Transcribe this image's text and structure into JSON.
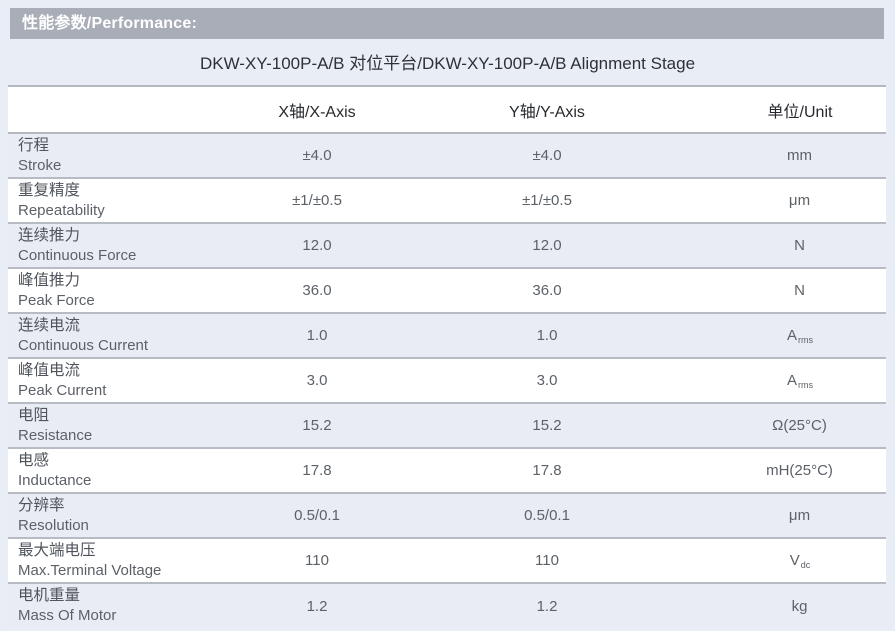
{
  "section": {
    "title": "性能参数/Performance:"
  },
  "title": "DKW-XY-100P-A/B 对位平台/DKW-XY-100P-A/B Alignment Stage",
  "table": {
    "columns": [
      "",
      "X轴/X-Axis",
      "Y轴/Y-Axis",
      "单位/Unit"
    ],
    "rows": [
      {
        "name_cn": "行程",
        "name_en": "Stroke",
        "x": "±4.0",
        "y": "±4.0",
        "unit": "mm"
      },
      {
        "name_cn": "重复精度",
        "name_en": "Repeatability",
        "x": "±1/±0.5",
        "y": "±1/±0.5",
        "unit": "μm"
      },
      {
        "name_cn": "连续推力",
        "name_en": "Continuous Force",
        "x": "12.0",
        "y": "12.0",
        "unit": "N"
      },
      {
        "name_cn": "峰值推力",
        "name_en": "Peak Force",
        "x": "36.0",
        "y": "36.0",
        "unit": "N"
      },
      {
        "name_cn": "连续电流",
        "name_en": "Continuous Current",
        "x": "1.0",
        "y": "1.0",
        "unit": "A",
        "unit_sub": "rms"
      },
      {
        "name_cn": "峰值电流",
        "name_en": "Peak Current",
        "x": "3.0",
        "y": "3.0",
        "unit": "A",
        "unit_sub": "rms"
      },
      {
        "name_cn": "电阻",
        "name_en": "Resistance",
        "x": "15.2",
        "y": "15.2",
        "unit": "Ω(25°C)"
      },
      {
        "name_cn": "电感",
        "name_en": "Inductance",
        "x": "17.8",
        "y": "17.8",
        "unit": "mH(25°C)"
      },
      {
        "name_cn": "分辨率",
        "name_en": "Resolution",
        "x": "0.5/0.1",
        "y": "0.5/0.1",
        "unit": "μm"
      },
      {
        "name_cn": "最大端电压",
        "name_en": "Max.Terminal Voltage",
        "x": "110",
        "y": "110",
        "unit": "V",
        "unit_sub": "dc"
      },
      {
        "name_cn": "电机重量",
        "name_en": "Mass Of Motor",
        "x": "1.2",
        "y": "1.2",
        "unit": "kg"
      }
    ]
  },
  "colors": {
    "page_background": "#e9edf6",
    "section_bar_background": "#a8adb7",
    "section_bar_text": "#ffffff",
    "row_alt_background": "#e9ecf5",
    "row_plain_background": "#ffffff",
    "table_border": "#b4b8c1",
    "title_text": "#2e3237",
    "body_text": "#5c6168"
  }
}
